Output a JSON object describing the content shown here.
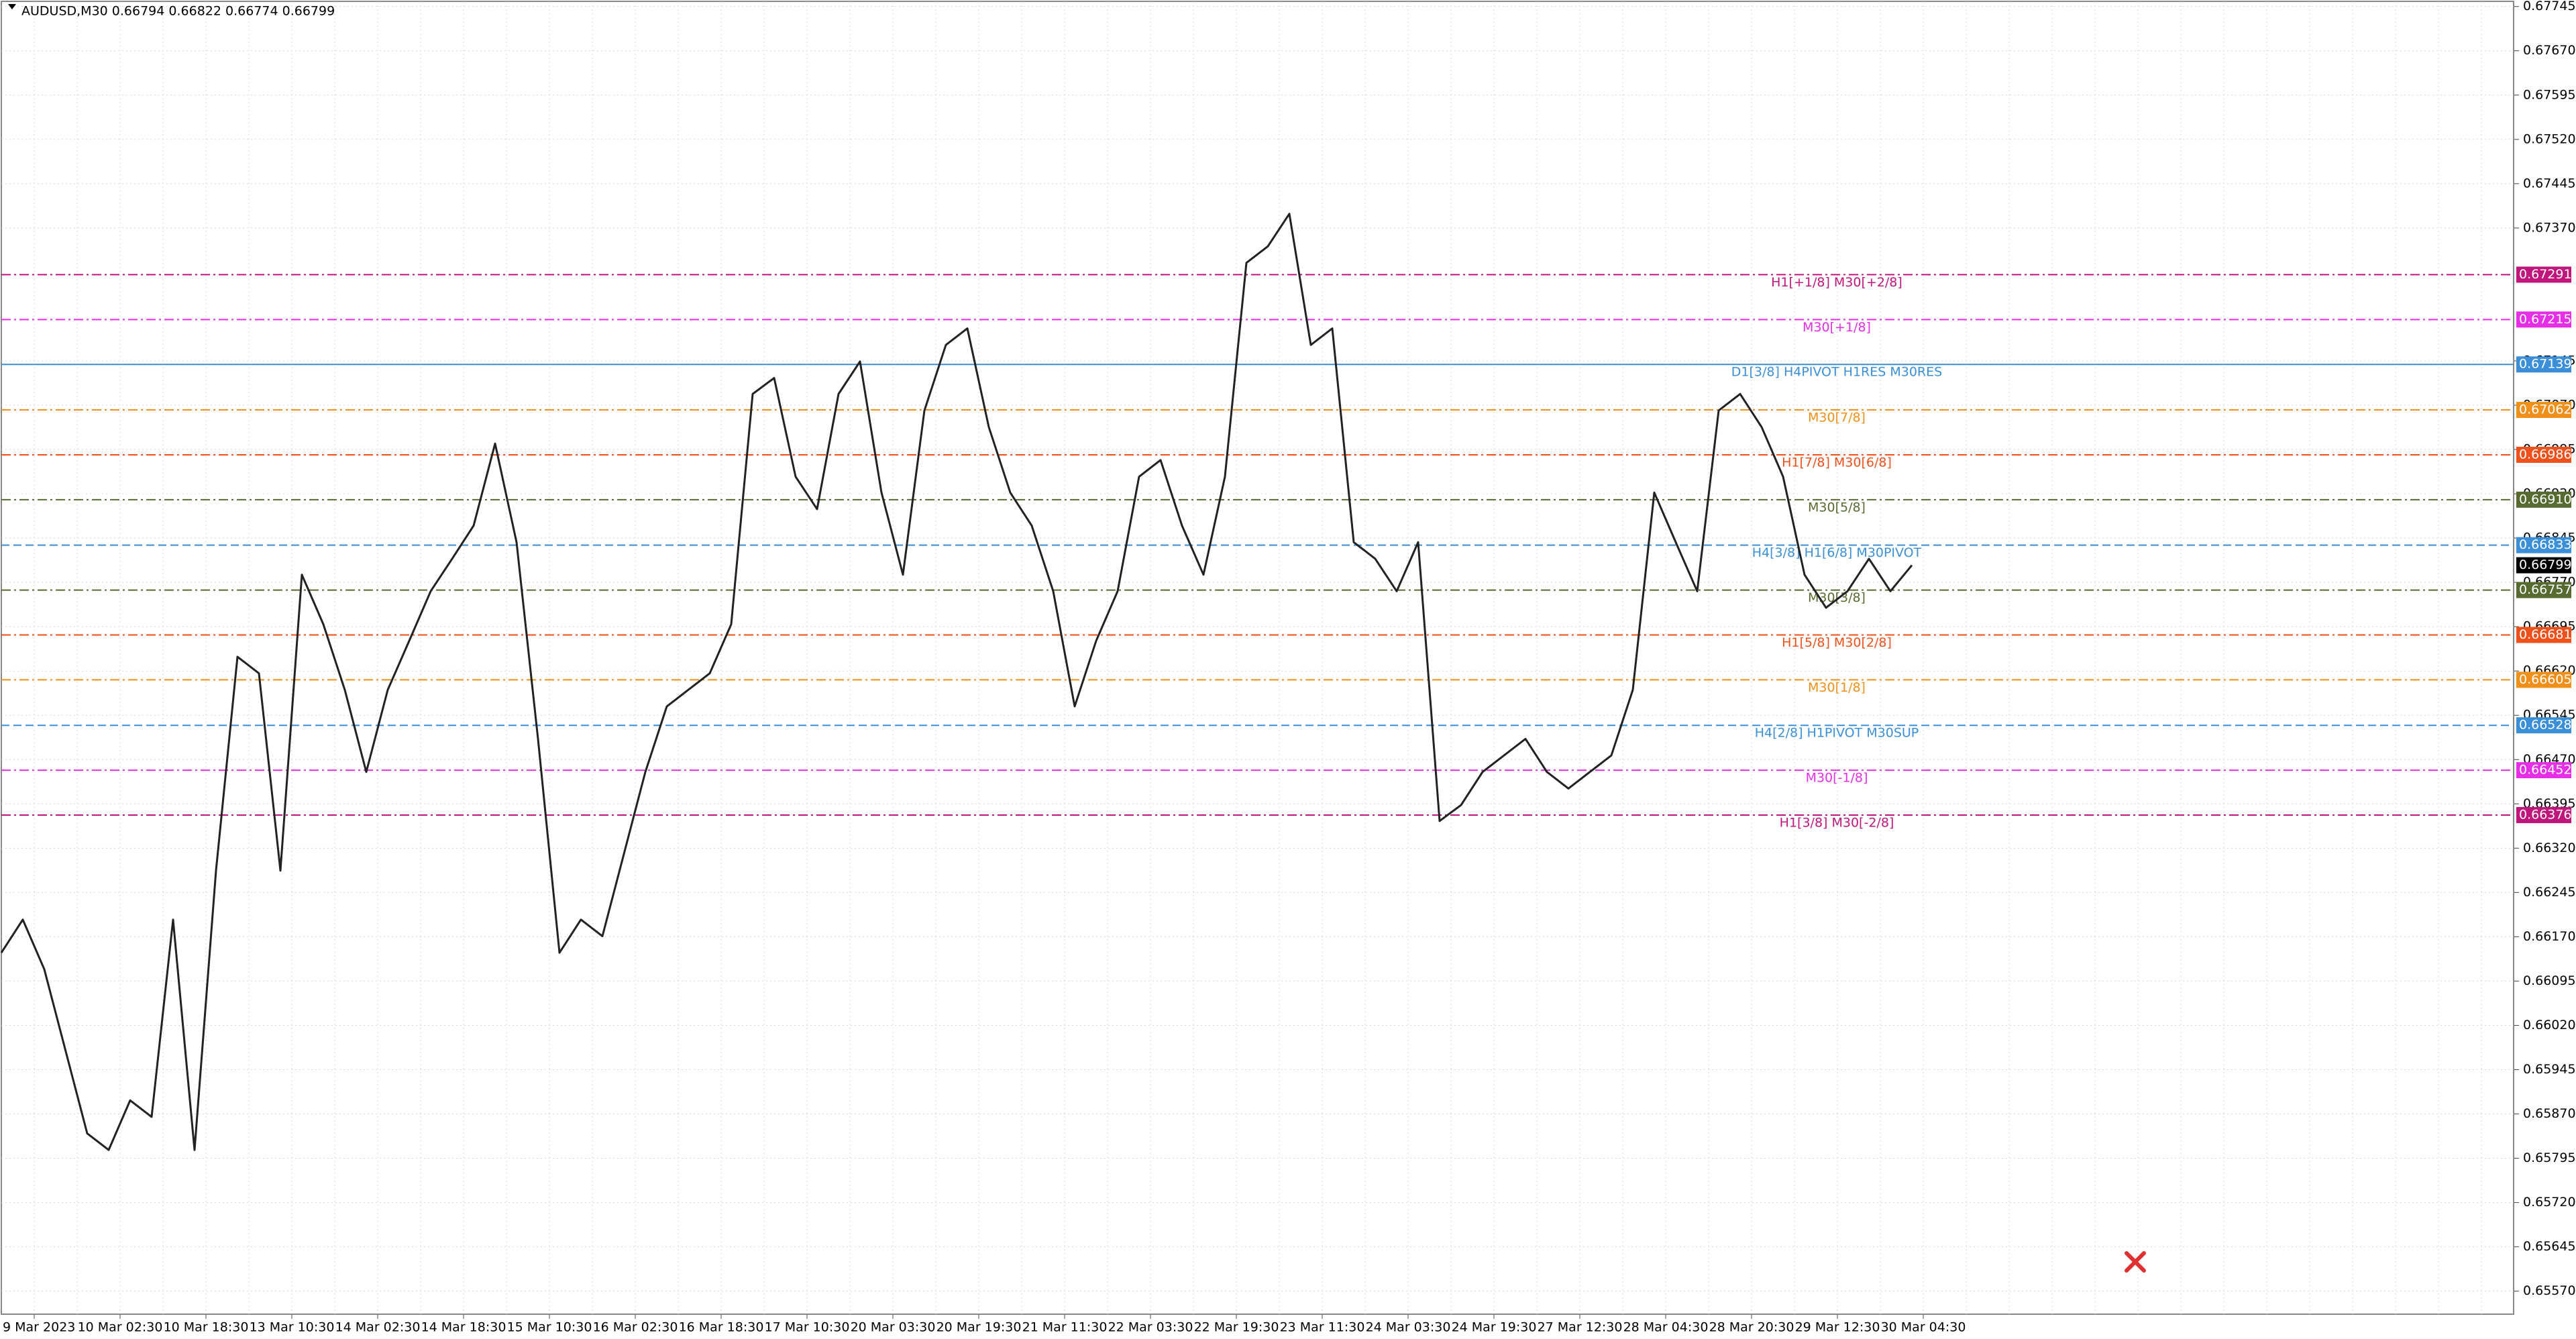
{
  "chart_data": {
    "type": "line",
    "title": "AUDUSD,M30  0.66794 0.66822 0.66774 0.66799",
    "ylim": [
      0.65531,
      0.67756
    ],
    "yticks": [
      0.67745,
      {
        "value": 0.6767,
        "label": "0.67670"
      },
      0.67595,
      {
        "value": 0.6752,
        "label": "0.67520"
      },
      0.67445,
      {
        "value": 0.6737,
        "label": "0.67370"
      },
      0.67145,
      {
        "value": 0.6707,
        "label": "0.67070"
      },
      0.66995,
      {
        "value": 0.6692,
        "label": "0.66920"
      },
      0.66845,
      {
        "value": 0.6677,
        "label": "0.66770"
      },
      0.66695,
      {
        "value": 0.6662,
        "label": "0.66620"
      },
      0.66545,
      {
        "value": 0.6647,
        "label": "0.66470"
      },
      0.66395,
      {
        "value": 0.6632,
        "label": "0.66320"
      },
      0.66245,
      {
        "value": 0.6617,
        "label": "0.66170"
      },
      0.66095,
      {
        "value": 0.6602,
        "label": "0.66020"
      },
      0.65945,
      {
        "value": 0.6587,
        "label": "0.65870"
      },
      0.65795,
      {
        "value": 0.6572,
        "label": "0.65720"
      },
      0.65645,
      {
        "value": 0.6557,
        "label": "0.65570"
      }
    ],
    "grid": true,
    "x_labels": [
      "9 Mar 2023",
      "10 Mar 02:30",
      "10 Mar 18:30",
      "13 Mar 10:30",
      "14 Mar 02:30",
      "14 Mar 18:30",
      "15 Mar 10:30",
      "16 Mar 02:30",
      "16 Mar 18:30",
      "17 Mar 10:30",
      "20 Mar 03:30",
      "20 Mar 19:30",
      "21 Mar 11:30",
      "22 Mar 03:30",
      "22 Mar 19:30",
      "23 Mar 11:30",
      "24 Mar 03:30",
      "24 Mar 19:30",
      "27 Mar 12:30",
      "28 Mar 04:30",
      "28 Mar 20:30",
      "29 Mar 12:30",
      "30 Mar 04:30"
    ],
    "series": [
      {
        "name": "AUDUSD",
        "color": "#222222",
        "values": [
          0.66143,
          0.66199,
          0.66115,
          0.65976,
          0.65837,
          0.65809,
          0.65893,
          0.65865,
          0.66199,
          0.65809,
          0.66282,
          0.66644,
          0.66616,
          0.66282,
          0.66783,
          0.66699,
          0.66588,
          0.66449,
          0.66588,
          0.66671,
          0.66755,
          0.6681,
          0.66866,
          0.67005,
          0.66838,
          0.66505,
          0.66143,
          0.66199,
          0.66171,
          0.6631,
          0.66449,
          0.6656,
          0.66588,
          0.66616,
          0.66699,
          0.67089,
          0.67116,
          0.66949,
          0.66894,
          0.67089,
          0.67144,
          0.66922,
          0.66783,
          0.67061,
          0.67172,
          0.672,
          0.67033,
          0.66922,
          0.66866,
          0.66755,
          0.6656,
          0.66671,
          0.66755,
          0.66949,
          0.66977,
          0.66866,
          0.66783,
          0.66949,
          0.67311,
          0.67339,
          0.67394,
          0.67172,
          0.672,
          0.66838,
          0.6681,
          0.66755,
          0.66838,
          0.66366,
          0.66393,
          0.66449,
          0.66477,
          0.66505,
          0.66449,
          0.66421,
          0.66449,
          0.66477,
          0.66588,
          0.66922,
          0.66838,
          0.66755,
          0.67061,
          0.67089,
          0.67033,
          0.66949,
          0.66783,
          0.66727,
          0.66755,
          0.6681,
          0.66755,
          0.66799
        ]
      }
    ],
    "levels": [
      {
        "text": "H1[+1/8] M30[+2/8]",
        "value": 0.67291,
        "color": "#c0157a",
        "style": "dashdot"
      },
      {
        "text": "M30[+1/8]",
        "value": 0.67215,
        "color": "#e62ee6",
        "style": "dashdot"
      },
      {
        "text": "D1[3/8] H4PIVOT H1RES M30RES",
        "value": 0.67139,
        "color": "#3b8fd9",
        "style": "solid"
      },
      {
        "text": "M30[7/8]",
        "value": 0.67062,
        "color": "#f0901a",
        "style": "dashdot"
      },
      {
        "text": "H1[7/8] M30[6/8]",
        "value": 0.66986,
        "color": "#f0501a",
        "style": "dashdot"
      },
      {
        "text": "M30[5/8]",
        "value": 0.6691,
        "label": "0.66910",
        "color": "#556b2f",
        "style": "dashdot"
      },
      {
        "text": "H4[3/8] H1[6/8] M30PIVOT",
        "value": 0.66833,
        "color": "#3b8fd9",
        "style": "dashed"
      },
      {
        "text": "M30[3/8]",
        "value": 0.66757,
        "color": "#556b2f",
        "style": "dashdot"
      },
      {
        "text": "H1[5/8] M30[2/8]",
        "value": 0.66681,
        "color": "#f0501a",
        "style": "dashdot"
      },
      {
        "text": "M30[1/8]",
        "value": 0.66605,
        "color": "#f0901a",
        "style": "dashdot"
      },
      {
        "text": "H4[2/8] H1PIVOT M30SUP",
        "value": 0.66528,
        "color": "#3b8fd9",
        "style": "dashed"
      },
      {
        "text": "M30[-1/8]",
        "value": 0.66452,
        "color": "#e62ee6",
        "style": "dashdot"
      },
      {
        "text": "H1[3/8] M30[-2/8]",
        "value": 0.66376,
        "color": "#c0157a",
        "style": "dashdot"
      }
    ],
    "current_price": 0.66799
  }
}
